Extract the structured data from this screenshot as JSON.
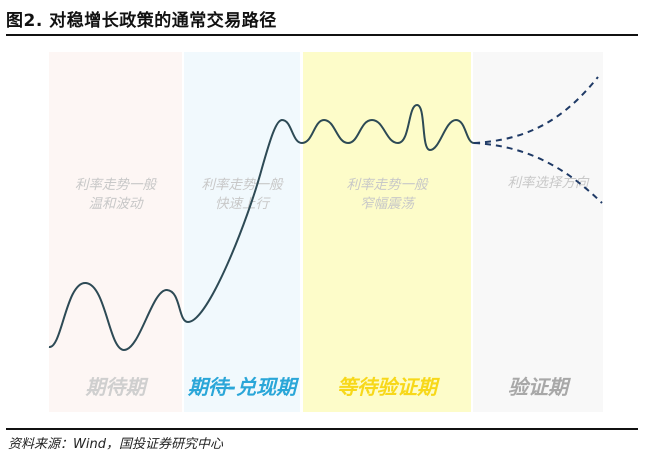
{
  "title": "图2. 对稳增长政策的通常交易路径",
  "source": "资料来源：Wind，国投证券研究中心",
  "stages": [
    {
      "desc_line1": "利率走势一般",
      "desc_line2": "温和波动",
      "phase": "期待期",
      "phase_color": "#cfcfcf"
    },
    {
      "desc_line1": "利率走势一般",
      "desc_line2": "快速上行",
      "phase": "期待-兑现期",
      "phase_color": "#2aa6d8"
    },
    {
      "desc_line1": "利率走势一般",
      "desc_line2": "窄幅震荡",
      "phase": "等待验证期",
      "phase_color": "#f7d81a"
    },
    {
      "desc_line1": "利率选择方向",
      "desc_line2": "",
      "phase": "验证期",
      "phase_color": "#a8a8a8"
    }
  ],
  "colors": {
    "curve": "#2d4a55",
    "panel_bg": [
      "#fdf6f4",
      "#f1f9fd",
      "#fdfcc9",
      "#f8f8f8"
    ]
  }
}
